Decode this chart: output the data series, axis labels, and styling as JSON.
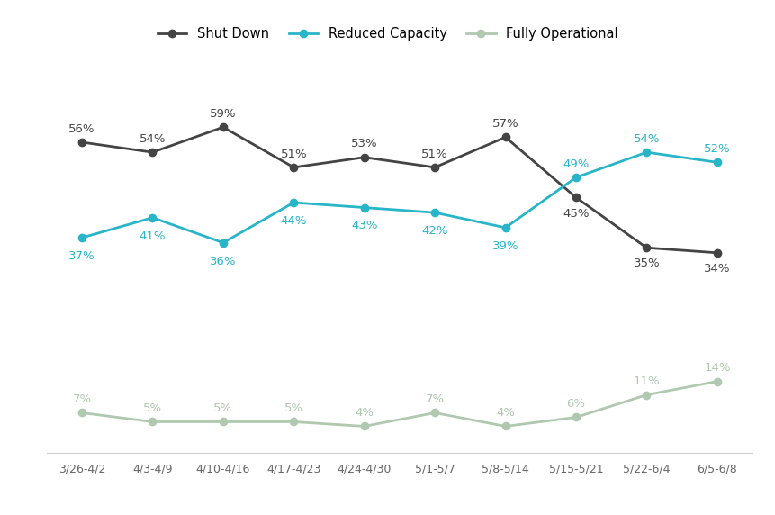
{
  "x_labels": [
    "3/26-4/2",
    "4/3-4/9",
    "4/10-4/16",
    "4/17-4/23",
    "4/24-4/30",
    "5/1-5/7",
    "5/8-5/14",
    "5/15-5/21",
    "5/22-6/4",
    "6/5-6/8"
  ],
  "shut_down": [
    56,
    54,
    59,
    51,
    53,
    51,
    57,
    45,
    35,
    34
  ],
  "reduced_capacity": [
    37,
    41,
    36,
    44,
    43,
    42,
    39,
    49,
    54,
    52
  ],
  "fully_operational": [
    7,
    5,
    5,
    5,
    4,
    7,
    4,
    6,
    11,
    14
  ],
  "shut_down_color": "#444444",
  "reduced_capacity_color": "#29b5c8",
  "fully_operational_color": "#b0c8b0",
  "background_color": "#ffffff",
  "legend_labels": [
    "Shut Down",
    "Reduced Capacity",
    "Fully Operational"
  ],
  "shut_label_yoffset": [
    6,
    6,
    6,
    6,
    6,
    6,
    6,
    -8,
    -8,
    -8
  ],
  "reduced_label_yoffset": [
    -10,
    -10,
    -10,
    -10,
    -10,
    -10,
    -10,
    6,
    6,
    6
  ],
  "fully_label_yoffset": [
    6,
    6,
    6,
    6,
    6,
    6,
    6,
    6,
    6,
    6
  ]
}
